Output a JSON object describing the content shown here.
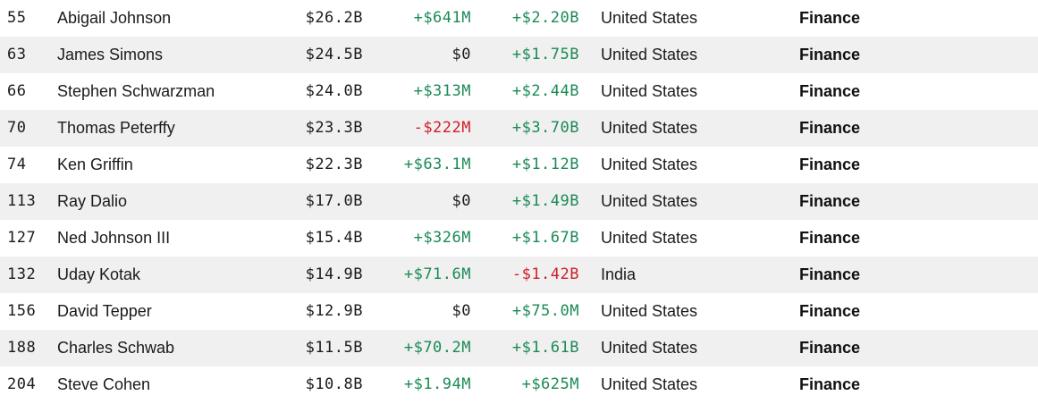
{
  "rows": [
    {
      "rank": "55",
      "name": "Abigail Johnson",
      "net_worth": "$26.2B",
      "last_change": "+$641M",
      "ytd_change": "+$2.20B",
      "country": "United States",
      "industry": "Finance",
      "last_change_sign": "pos",
      "ytd_change_sign": "pos"
    },
    {
      "rank": "63",
      "name": "James Simons",
      "net_worth": "$24.5B",
      "last_change": "$0",
      "ytd_change": "+$1.75B",
      "country": "United States",
      "industry": "Finance",
      "last_change_sign": "neutral",
      "ytd_change_sign": "pos"
    },
    {
      "rank": "66",
      "name": "Stephen Schwarzman",
      "net_worth": "$24.0B",
      "last_change": "+$313M",
      "ytd_change": "+$2.44B",
      "country": "United States",
      "industry": "Finance",
      "last_change_sign": "pos",
      "ytd_change_sign": "pos"
    },
    {
      "rank": "70",
      "name": "Thomas Peterffy",
      "net_worth": "$23.3B",
      "last_change": "-$222M",
      "ytd_change": "+$3.70B",
      "country": "United States",
      "industry": "Finance",
      "last_change_sign": "neg",
      "ytd_change_sign": "pos"
    },
    {
      "rank": "74",
      "name": "Ken Griffin",
      "net_worth": "$22.3B",
      "last_change": "+$63.1M",
      "ytd_change": "+$1.12B",
      "country": "United States",
      "industry": "Finance",
      "last_change_sign": "pos",
      "ytd_change_sign": "pos"
    },
    {
      "rank": "113",
      "name": "Ray Dalio",
      "net_worth": "$17.0B",
      "last_change": "$0",
      "ytd_change": "+$1.49B",
      "country": "United States",
      "industry": "Finance",
      "last_change_sign": "neutral",
      "ytd_change_sign": "pos"
    },
    {
      "rank": "127",
      "name": "Ned Johnson III",
      "net_worth": "$15.4B",
      "last_change": "+$326M",
      "ytd_change": "+$1.67B",
      "country": "United States",
      "industry": "Finance",
      "last_change_sign": "pos",
      "ytd_change_sign": "pos"
    },
    {
      "rank": "132",
      "name": "Uday Kotak",
      "net_worth": "$14.9B",
      "last_change": "+$71.6M",
      "ytd_change": "-$1.42B",
      "country": "India",
      "industry": "Finance",
      "last_change_sign": "pos",
      "ytd_change_sign": "neg"
    },
    {
      "rank": "156",
      "name": "David Tepper",
      "net_worth": "$12.9B",
      "last_change": "$0",
      "ytd_change": "+$75.0M",
      "country": "United States",
      "industry": "Finance",
      "last_change_sign": "neutral",
      "ytd_change_sign": "pos"
    },
    {
      "rank": "188",
      "name": "Charles Schwab",
      "net_worth": "$11.5B",
      "last_change": "+$70.2M",
      "ytd_change": "+$1.61B",
      "country": "United States",
      "industry": "Finance",
      "last_change_sign": "pos",
      "ytd_change_sign": "pos"
    },
    {
      "rank": "204",
      "name": "Steve Cohen",
      "net_worth": "$10.8B",
      "last_change": "+$1.94M",
      "ytd_change": "+$625M",
      "country": "United States",
      "industry": "Finance",
      "last_change_sign": "pos",
      "ytd_change_sign": "pos"
    }
  ],
  "colors": {
    "positive": "#1a8a55",
    "negative": "#d01c2a",
    "row_shade": "#f0f0f0"
  }
}
